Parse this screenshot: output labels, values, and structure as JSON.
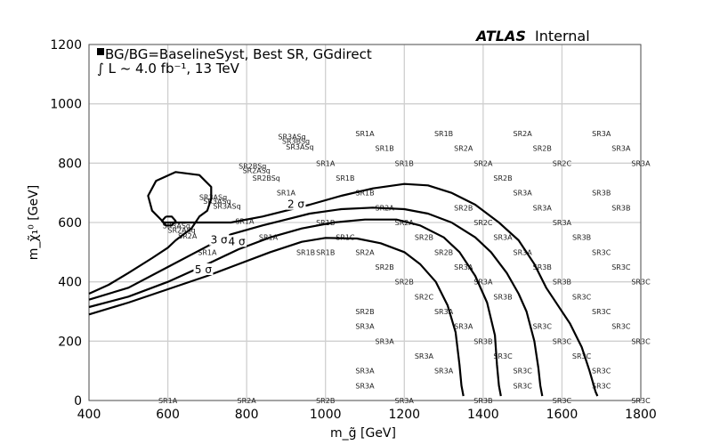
{
  "chart_data": {
    "type": "contour",
    "atlas": {
      "bold": "ATLAS",
      "rest": "Internal"
    },
    "legend_line1": "BG/BG=BaselineSyst, Best SR, GGdirect",
    "legend_line2": "∫ L ~ 4.0 fb⁻¹, 13 TeV",
    "xlabel": "m_g̃ [GeV]",
    "ylabel": "m_χ̃₁⁰ [GeV]",
    "xlim": [
      400,
      1800
    ],
    "ylim": [
      0,
      1200
    ],
    "xticks": [
      "400",
      "600",
      "800",
      "1000",
      "1200",
      "1400",
      "1600",
      "1800"
    ],
    "yticks": [
      "0",
      "200",
      "400",
      "600",
      "800",
      "1000",
      "1200"
    ],
    "grid": true,
    "contours": [
      {
        "label": "2 σ",
        "label_at": [
          925,
          655
        ],
        "points": [
          [
            400,
            360
          ],
          [
            450,
            390
          ],
          [
            500,
            430
          ],
          [
            560,
            480
          ],
          [
            600,
            515
          ],
          [
            620,
            540
          ],
          [
            640,
            560
          ],
          [
            660,
            580
          ],
          [
            680,
            620
          ],
          [
            700,
            640
          ],
          [
            710,
            680
          ],
          [
            710,
            720
          ],
          [
            680,
            760
          ],
          [
            620,
            770
          ],
          [
            570,
            740
          ],
          [
            550,
            690
          ],
          [
            560,
            640
          ],
          [
            590,
            600
          ],
          [
            640,
            600
          ],
          [
            680,
            600
          ],
          [
            760,
            600
          ],
          [
            840,
            620
          ],
          [
            900,
            640
          ],
          [
            960,
            660
          ],
          [
            1040,
            690
          ],
          [
            1120,
            715
          ],
          [
            1200,
            730
          ],
          [
            1260,
            725
          ],
          [
            1320,
            700
          ],
          [
            1380,
            660
          ],
          [
            1440,
            600
          ],
          [
            1490,
            540
          ],
          [
            1530,
            460
          ],
          [
            1560,
            380
          ],
          [
            1590,
            320
          ],
          [
            1620,
            260
          ],
          [
            1650,
            180
          ],
          [
            1670,
            100
          ],
          [
            1685,
            30
          ],
          [
            1690,
            15
          ]
        ]
      },
      {
        "label": "3 σ",
        "label_at": [
          730,
          535
        ],
        "points": [
          [
            400,
            340
          ],
          [
            500,
            380
          ],
          [
            600,
            450
          ],
          [
            700,
            520
          ],
          [
            760,
            560
          ],
          [
            840,
            590
          ],
          [
            900,
            610
          ],
          [
            960,
            630
          ],
          [
            1040,
            645
          ],
          [
            1120,
            650
          ],
          [
            1200,
            645
          ],
          [
            1260,
            630
          ],
          [
            1320,
            600
          ],
          [
            1380,
            550
          ],
          [
            1420,
            500
          ],
          [
            1460,
            430
          ],
          [
            1490,
            360
          ],
          [
            1510,
            300
          ],
          [
            1530,
            200
          ],
          [
            1540,
            110
          ],
          [
            1545,
            50
          ],
          [
            1550,
            15
          ]
        ]
      },
      {
        "label": "4 σ",
        "label_at": [
          775,
          530
        ],
        "points": [
          [
            400,
            315
          ],
          [
            500,
            350
          ],
          [
            600,
            400
          ],
          [
            700,
            460
          ],
          [
            780,
            510
          ],
          [
            860,
            550
          ],
          [
            940,
            580
          ],
          [
            1020,
            600
          ],
          [
            1100,
            610
          ],
          [
            1180,
            610
          ],
          [
            1240,
            590
          ],
          [
            1300,
            550
          ],
          [
            1340,
            500
          ],
          [
            1380,
            420
          ],
          [
            1410,
            330
          ],
          [
            1430,
            220
          ],
          [
            1435,
            120
          ],
          [
            1440,
            50
          ],
          [
            1445,
            15
          ]
        ]
      },
      {
        "label": "5 σ",
        "label_at": [
          690,
          435
        ],
        "points": [
          [
            400,
            290
          ],
          [
            500,
            330
          ],
          [
            600,
            375
          ],
          [
            700,
            420
          ],
          [
            760,
            450
          ],
          [
            860,
            500
          ],
          [
            940,
            535
          ],
          [
            1000,
            548
          ],
          [
            1080,
            546
          ],
          [
            1140,
            530
          ],
          [
            1200,
            500
          ],
          [
            1240,
            460
          ],
          [
            1280,
            400
          ],
          [
            1310,
            320
          ],
          [
            1330,
            230
          ],
          [
            1340,
            120
          ],
          [
            1345,
            50
          ],
          [
            1350,
            15
          ]
        ]
      },
      {
        "label": "",
        "label_at": null,
        "points": [
          [
            595,
            620
          ],
          [
            610,
            620
          ],
          [
            620,
            605
          ],
          [
            610,
            590
          ],
          [
            595,
            590
          ],
          [
            585,
            605
          ],
          [
            595,
            620
          ]
        ]
      }
    ],
    "sr_labels": [
      {
        "x": 600,
        "y": 0,
        "t": "SR1A"
      },
      {
        "x": 800,
        "y": 0,
        "t": "SR2A"
      },
      {
        "x": 1000,
        "y": 0,
        "t": "SR2B"
      },
      {
        "x": 1200,
        "y": 0,
        "t": "SR3A"
      },
      {
        "x": 1400,
        "y": 0,
        "t": "SR3B"
      },
      {
        "x": 1600,
        "y": 0,
        "t": "SR3C"
      },
      {
        "x": 1800,
        "y": 0,
        "t": "SR3C"
      },
      {
        "x": 1100,
        "y": 50,
        "t": "SR3A"
      },
      {
        "x": 1500,
        "y": 50,
        "t": "SR3C"
      },
      {
        "x": 1700,
        "y": 50,
        "t": "SR3C"
      },
      {
        "x": 1100,
        "y": 100,
        "t": "SR3A"
      },
      {
        "x": 1300,
        "y": 100,
        "t": "SR3A"
      },
      {
        "x": 1500,
        "y": 100,
        "t": "SR3C"
      },
      {
        "x": 1700,
        "y": 100,
        "t": "SR3C"
      },
      {
        "x": 1250,
        "y": 150,
        "t": "SR3A"
      },
      {
        "x": 1450,
        "y": 150,
        "t": "SR3C"
      },
      {
        "x": 1650,
        "y": 150,
        "t": "SR3C"
      },
      {
        "x": 1150,
        "y": 200,
        "t": "SR3A"
      },
      {
        "x": 1400,
        "y": 200,
        "t": "SR3B"
      },
      {
        "x": 1600,
        "y": 200,
        "t": "SR3C"
      },
      {
        "x": 1800,
        "y": 200,
        "t": "SR3C"
      },
      {
        "x": 1100,
        "y": 250,
        "t": "SR3A"
      },
      {
        "x": 1350,
        "y": 250,
        "t": "SR3A"
      },
      {
        "x": 1550,
        "y": 250,
        "t": "SR3C"
      },
      {
        "x": 1750,
        "y": 250,
        "t": "SR3C"
      },
      {
        "x": 1100,
        "y": 300,
        "t": "SR2B"
      },
      {
        "x": 1300,
        "y": 300,
        "t": "SR3A"
      },
      {
        "x": 1700,
        "y": 300,
        "t": "SR3C"
      },
      {
        "x": 1250,
        "y": 350,
        "t": "SR2C"
      },
      {
        "x": 1450,
        "y": 350,
        "t": "SR3B"
      },
      {
        "x": 1650,
        "y": 350,
        "t": "SR3C"
      },
      {
        "x": 1200,
        "y": 400,
        "t": "SR2B"
      },
      {
        "x": 1400,
        "y": 400,
        "t": "SR3A"
      },
      {
        "x": 1600,
        "y": 400,
        "t": "SR3B"
      },
      {
        "x": 1800,
        "y": 400,
        "t": "SR3C"
      },
      {
        "x": 1150,
        "y": 450,
        "t": "SR2B"
      },
      {
        "x": 1350,
        "y": 450,
        "t": "SR3A"
      },
      {
        "x": 1550,
        "y": 450,
        "t": "SR3B"
      },
      {
        "x": 1750,
        "y": 450,
        "t": "SR3C"
      },
      {
        "x": 1000,
        "y": 500,
        "t": "SR1B"
      },
      {
        "x": 1100,
        "y": 500,
        "t": "SR2A"
      },
      {
        "x": 1300,
        "y": 500,
        "t": "SR2B"
      },
      {
        "x": 1500,
        "y": 500,
        "t": "SR3A"
      },
      {
        "x": 1700,
        "y": 500,
        "t": "SR3C"
      },
      {
        "x": 1050,
        "y": 550,
        "t": "SR1C"
      },
      {
        "x": 1250,
        "y": 550,
        "t": "SR2B"
      },
      {
        "x": 1450,
        "y": 550,
        "t": "SR3A"
      },
      {
        "x": 1650,
        "y": 550,
        "t": "SR3B"
      },
      {
        "x": 1000,
        "y": 600,
        "t": "SR1B"
      },
      {
        "x": 1200,
        "y": 600,
        "t": "SR2A"
      },
      {
        "x": 1400,
        "y": 600,
        "t": "SR2C"
      },
      {
        "x": 1600,
        "y": 600,
        "t": "SR3A"
      },
      {
        "x": 1150,
        "y": 650,
        "t": "SR2A"
      },
      {
        "x": 1350,
        "y": 650,
        "t": "SR2B"
      },
      {
        "x": 1550,
        "y": 650,
        "t": "SR3A"
      },
      {
        "x": 1750,
        "y": 650,
        "t": "SR3B"
      },
      {
        "x": 900,
        "y": 700,
        "t": "SR1A"
      },
      {
        "x": 1100,
        "y": 700,
        "t": "SR1B"
      },
      {
        "x": 1500,
        "y": 700,
        "t": "SR3A"
      },
      {
        "x": 1700,
        "y": 700,
        "t": "SR3B"
      },
      {
        "x": 1050,
        "y": 750,
        "t": "SR1B"
      },
      {
        "x": 1450,
        "y": 750,
        "t": "SR2B"
      },
      {
        "x": 1000,
        "y": 800,
        "t": "SR1A"
      },
      {
        "x": 1200,
        "y": 800,
        "t": "SR1B"
      },
      {
        "x": 1400,
        "y": 800,
        "t": "SR2A"
      },
      {
        "x": 1600,
        "y": 800,
        "t": "SR2C"
      },
      {
        "x": 1800,
        "y": 800,
        "t": "SR3A"
      },
      {
        "x": 1150,
        "y": 850,
        "t": "SR1B"
      },
      {
        "x": 1350,
        "y": 850,
        "t": "SR2A"
      },
      {
        "x": 1550,
        "y": 850,
        "t": "SR2B"
      },
      {
        "x": 1750,
        "y": 850,
        "t": "SR3A"
      },
      {
        "x": 1100,
        "y": 900,
        "t": "SR1A"
      },
      {
        "x": 1300,
        "y": 900,
        "t": "SR1B"
      },
      {
        "x": 1500,
        "y": 900,
        "t": "SR2A"
      },
      {
        "x": 1700,
        "y": 900,
        "t": "SR3A"
      },
      {
        "x": 915,
        "y": 890,
        "t": "SR3ASq"
      },
      {
        "x": 925,
        "y": 875,
        "t": "SR3BSq"
      },
      {
        "x": 935,
        "y": 855,
        "t": "SR3ASq"
      },
      {
        "x": 815,
        "y": 790,
        "t": "SR2BSq"
      },
      {
        "x": 825,
        "y": 775,
        "t": "SR2ASq"
      },
      {
        "x": 850,
        "y": 750,
        "t": "SR2BSq"
      },
      {
        "x": 715,
        "y": 685,
        "t": "SR3ASq"
      },
      {
        "x": 725,
        "y": 672,
        "t": "SR3ASq"
      },
      {
        "x": 750,
        "y": 655,
        "t": "SR3ASq"
      },
      {
        "x": 795,
        "y": 605,
        "t": "SR1A"
      },
      {
        "x": 855,
        "y": 550,
        "t": "SR1A"
      },
      {
        "x": 700,
        "y": 500,
        "t": "SR1A"
      },
      {
        "x": 950,
        "y": 500,
        "t": "SR1B"
      },
      {
        "x": 622,
        "y": 590,
        "t": "SR3ASq"
      },
      {
        "x": 635,
        "y": 575,
        "t": "SR2ASq"
      },
      {
        "x": 650,
        "y": 555,
        "t": "SR2A"
      }
    ]
  }
}
